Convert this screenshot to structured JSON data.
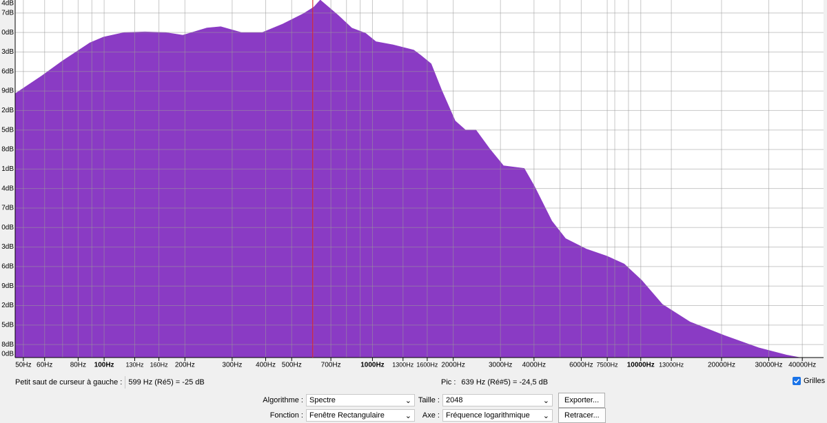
{
  "chart_data": {
    "type": "area",
    "color": "#8a3bc4",
    "grid": true,
    "log_x": true,
    "xlim": [
      46.6,
      48000
    ],
    "ylim": [
      -80,
      -25
    ],
    "xticks": [
      {
        "value": 50,
        "label": "50Hz"
      },
      {
        "value": 60,
        "label": "60Hz"
      },
      {
        "value": 80,
        "label": "80Hz"
      },
      {
        "value": 100,
        "label": "100Hz"
      },
      {
        "value": 130,
        "label": "130Hz"
      },
      {
        "value": 160,
        "label": "160Hz"
      },
      {
        "value": 200,
        "label": "200Hz"
      },
      {
        "value": 300,
        "label": "300Hz"
      },
      {
        "value": 400,
        "label": "400Hz"
      },
      {
        "value": 500,
        "label": "500Hz"
      },
      {
        "value": 700,
        "label": "700Hz"
      },
      {
        "value": 1000,
        "label": "1000Hz"
      },
      {
        "value": 1300,
        "label": "1300Hz"
      },
      {
        "value": 1600,
        "label": "1600Hz"
      },
      {
        "value": 2000,
        "label": "2000Hz"
      },
      {
        "value": 3000,
        "label": "3000Hz"
      },
      {
        "value": 4000,
        "label": "4000Hz"
      },
      {
        "value": 6000,
        "label": "6000Hz"
      },
      {
        "value": 7500,
        "label": "7500Hz"
      },
      {
        "value": 10000,
        "label": "10000Hz"
      },
      {
        "value": 13000,
        "label": "13000Hz"
      },
      {
        "value": 20000,
        "label": "20000Hz"
      },
      {
        "value": 30000,
        "label": "30000Hz"
      },
      {
        "value": 40000,
        "label": "40000Hz"
      }
    ],
    "xminor": [
      70,
      90,
      600,
      800,
      900,
      5000,
      8000,
      9000
    ],
    "yticks": [
      {
        "value": -24,
        "label": "4dB"
      },
      {
        "value": -27,
        "label": "7dB"
      },
      {
        "value": -30,
        "label": "0dB"
      },
      {
        "value": -33,
        "label": "3dB"
      },
      {
        "value": -36,
        "label": "6dB"
      },
      {
        "value": -39,
        "label": "9dB"
      },
      {
        "value": -42,
        "label": "2dB"
      },
      {
        "value": -45,
        "label": "5dB"
      },
      {
        "value": -48,
        "label": "8dB"
      },
      {
        "value": -51,
        "label": "1dB"
      },
      {
        "value": -54,
        "label": "4dB"
      },
      {
        "value": -57,
        "label": "7dB"
      },
      {
        "value": -60,
        "label": "0dB"
      },
      {
        "value": -63,
        "label": "3dB"
      },
      {
        "value": -66,
        "label": "6dB"
      },
      {
        "value": -69,
        "label": "9dB"
      },
      {
        "value": -72,
        "label": "2dB"
      },
      {
        "value": -75,
        "label": "5dB"
      },
      {
        "value": -78,
        "label": "8dB"
      },
      {
        "value": -80,
        "label": "0dB"
      }
    ],
    "x": [
      46.6,
      58.4,
      69.7,
      88.3,
      99.4,
      118.7,
      141.9,
      169.4,
      196.4,
      241.5,
      272,
      325,
      388,
      463,
      553,
      604,
      639,
      743,
      837,
      942,
      1030,
      1194,
      1426,
      1513,
      1655,
      1808,
      2034,
      2223,
      2430,
      2735,
      3080,
      3678,
      4021,
      4660,
      5245,
      6266,
      7483,
      8672,
      10070,
      12030,
      15240,
      20480,
      27520,
      34850,
      39260,
      48000
    ],
    "values": [
      -39.4,
      -36.7,
      -34.4,
      -31.6,
      -30.7,
      -30,
      -29.9,
      -30,
      -30.4,
      -29.3,
      -29.1,
      -30,
      -30,
      -28.7,
      -27.1,
      -26.1,
      -25,
      -27.3,
      -29.3,
      -30.1,
      -31.4,
      -31.9,
      -32.7,
      -33.5,
      -34.8,
      -38.8,
      -43.6,
      -45,
      -45,
      -47.9,
      -50.5,
      -50.9,
      -53.7,
      -59,
      -61.7,
      -63.3,
      -64.4,
      -65.6,
      -68.1,
      -71.8,
      -74.5,
      -76.6,
      -78.5,
      -79.6,
      -80,
      -80
    ],
    "cursor": {
      "label": "Petit saut de curseur à gauche :",
      "freq": 599,
      "note": "Hz (Ré5) = -25 dB"
    },
    "peak": {
      "label": "Pic :",
      "freq": 639,
      "note": "Hz (Ré#5) = -24,5 dB"
    }
  },
  "controls": {
    "grid_label": "Grilles",
    "algorithm_label": "Algorithme :",
    "algorithm": "Spectre",
    "size_label": "Taille :",
    "size": "2048",
    "export": "Exporter...",
    "function_label": "Fonction :",
    "function": "Fenêtre Rectangulaire",
    "axis_label": "Axe :",
    "axis": "Fréquence logarithmique",
    "redraw": "Retracer..."
  }
}
